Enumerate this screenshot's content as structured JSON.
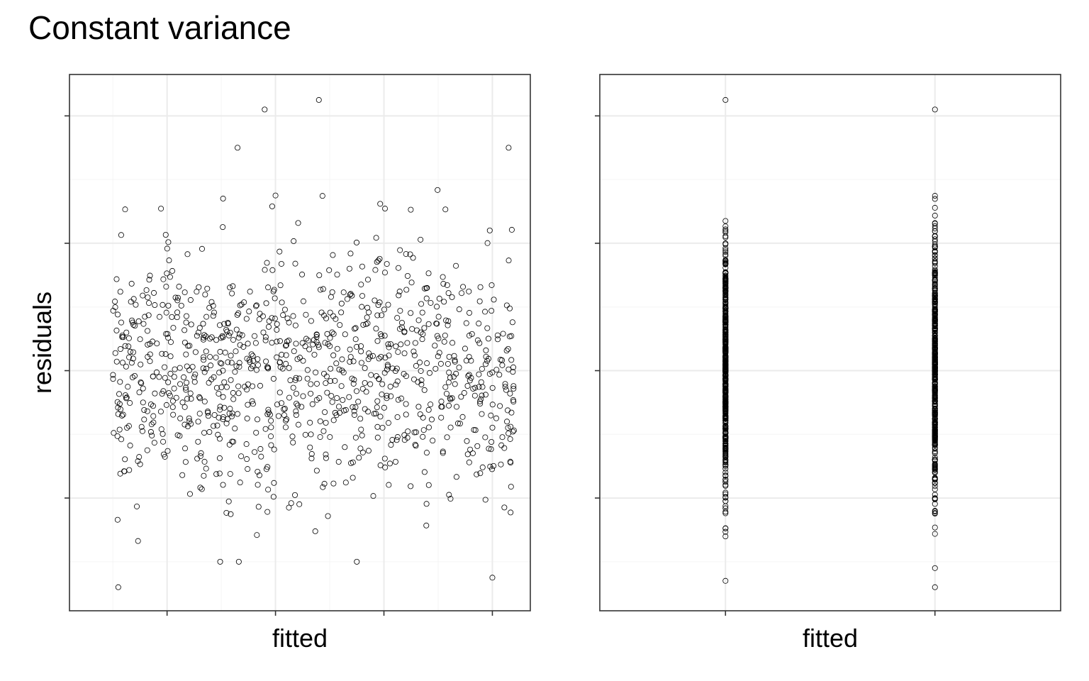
{
  "title": "Constant variance",
  "colors": {
    "background": "#ffffff",
    "panel_border": "#333333",
    "grid_major": "#ebebeb",
    "grid_minor": "#f5f5f5",
    "point_stroke": "#000000"
  },
  "chart_data": [
    {
      "type": "scatter",
      "xlabel": "fitted",
      "ylabel": "residuals",
      "x_ticks": [
        0,
        1,
        2,
        3
      ],
      "y_ticks": [
        -2,
        0,
        2,
        4
      ],
      "xlim": [
        -0.9,
        3.35
      ],
      "ylim": [
        -3.77,
        4.65
      ],
      "grid": true,
      "x_tick_labels_shown": false,
      "y_tick_labels_shown": false,
      "marker": "open circle",
      "n_points": 1000,
      "x_range": [
        -0.5,
        3.2
      ],
      "residual_distribution": "normal, mean 0, sd about 1, spread constant across fitted values",
      "highlight_points": [
        {
          "x": 0.9,
          "y": 4.1
        },
        {
          "x": 1.4,
          "y": 4.25
        },
        {
          "x": 3.15,
          "y": 3.5
        },
        {
          "x": -0.45,
          "y": -3.4
        },
        {
          "x": 3.0,
          "y": -3.25
        },
        {
          "x": 0.65,
          "y": 3.5
        },
        {
          "x": 1.0,
          "y": 2.75
        },
        {
          "x": 1.75,
          "y": -3.0
        }
      ]
    },
    {
      "type": "scatter",
      "xlabel": "fitted",
      "ylabel": "residuals",
      "x_ticks": [
        0,
        1
      ],
      "y_ticks": [
        -2,
        0,
        2,
        4
      ],
      "xlim": [
        -0.6,
        1.6
      ],
      "ylim": [
        -3.77,
        4.65
      ],
      "grid": true,
      "x_tick_labels_shown": false,
      "y_tick_labels_shown": false,
      "marker": "open circle",
      "x_levels": [
        0,
        1
      ],
      "points_per_level": 500,
      "residual_distribution": "normal, mean 0, sd about 1, same spread at both fitted levels",
      "highlight_points": [
        {
          "x": 0,
          "y": 4.25
        },
        {
          "x": 0,
          "y": -3.3
        },
        {
          "x": 1,
          "y": 4.1
        },
        {
          "x": 1,
          "y": -3.4
        }
      ]
    }
  ]
}
